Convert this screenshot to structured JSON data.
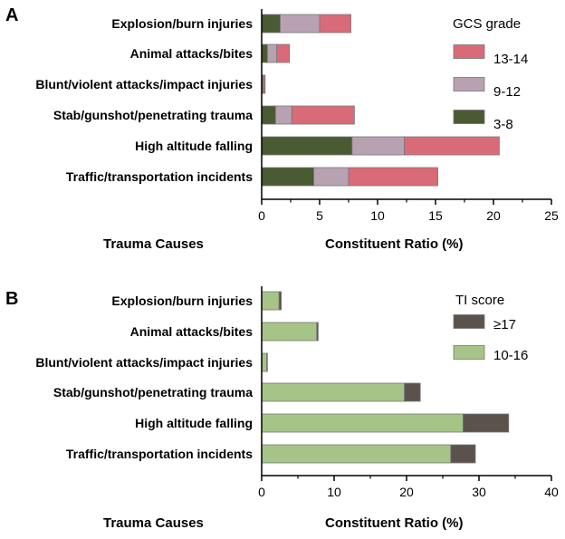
{
  "chart_data": [
    {
      "type": "bar",
      "orientation": "horizontal",
      "stacked": true,
      "panel": "A",
      "categories": [
        "Explosion/burn injuries",
        "Animal attacks/bites",
        "Blunt/violent attacks/impact injuries",
        "Stab/gunshot/penetrating trauma",
        "High altitude falling",
        "Traffic/transportation incidents"
      ],
      "series": [
        {
          "name": "3-8",
          "color": "#4a5a33",
          "values": [
            1.6,
            0.5,
            0.1,
            1.2,
            7.8,
            4.5
          ]
        },
        {
          "name": "9-12",
          "color": "#b8a2b2",
          "values": [
            3.4,
            0.8,
            0.1,
            1.4,
            4.5,
            3.0
          ]
        },
        {
          "name": "13-14",
          "color": "#d96b78",
          "values": [
            2.7,
            1.1,
            0.1,
            5.4,
            8.2,
            7.7
          ]
        }
      ],
      "legend_title": "GCS grade",
      "legend_order": [
        "13-14",
        "9-12",
        "3-8"
      ],
      "xlabel": "Constituent Ratio (%)",
      "ylabel": "Trauma Causes",
      "xlim": [
        0,
        25
      ],
      "xticks": [
        "0",
        "5",
        "10",
        "15",
        "20",
        "25"
      ],
      "grid": false,
      "legend_position": "top-right"
    },
    {
      "type": "bar",
      "orientation": "horizontal",
      "stacked": true,
      "panel": "B",
      "categories": [
        "Explosion/burn injuries",
        "Animal attacks/bites",
        "Blunt/violent attacks/impact injuries",
        "Stab/gunshot/penetrating trauma",
        "High altitude falling",
        "Traffic/transportation incidents"
      ],
      "series": [
        {
          "name": "10-16",
          "color": "#a6c487",
          "values": [
            2.4,
            7.6,
            0.7,
            19.7,
            27.8,
            26.1
          ]
        },
        {
          "name": "≥17",
          "color": "#5c524c",
          "values": [
            0.3,
            0.2,
            0.1,
            2.2,
            6.3,
            3.4
          ]
        }
      ],
      "legend_title": "TI score",
      "legend_order": [
        "≥17",
        "10-16"
      ],
      "xlabel": "Constituent Ratio (%)",
      "ylabel": "Trauma Causes",
      "xlim": [
        0,
        40
      ],
      "xticks": [
        "0",
        "10",
        "20",
        "30",
        "40"
      ],
      "grid": false,
      "legend_position": "top-right"
    }
  ]
}
